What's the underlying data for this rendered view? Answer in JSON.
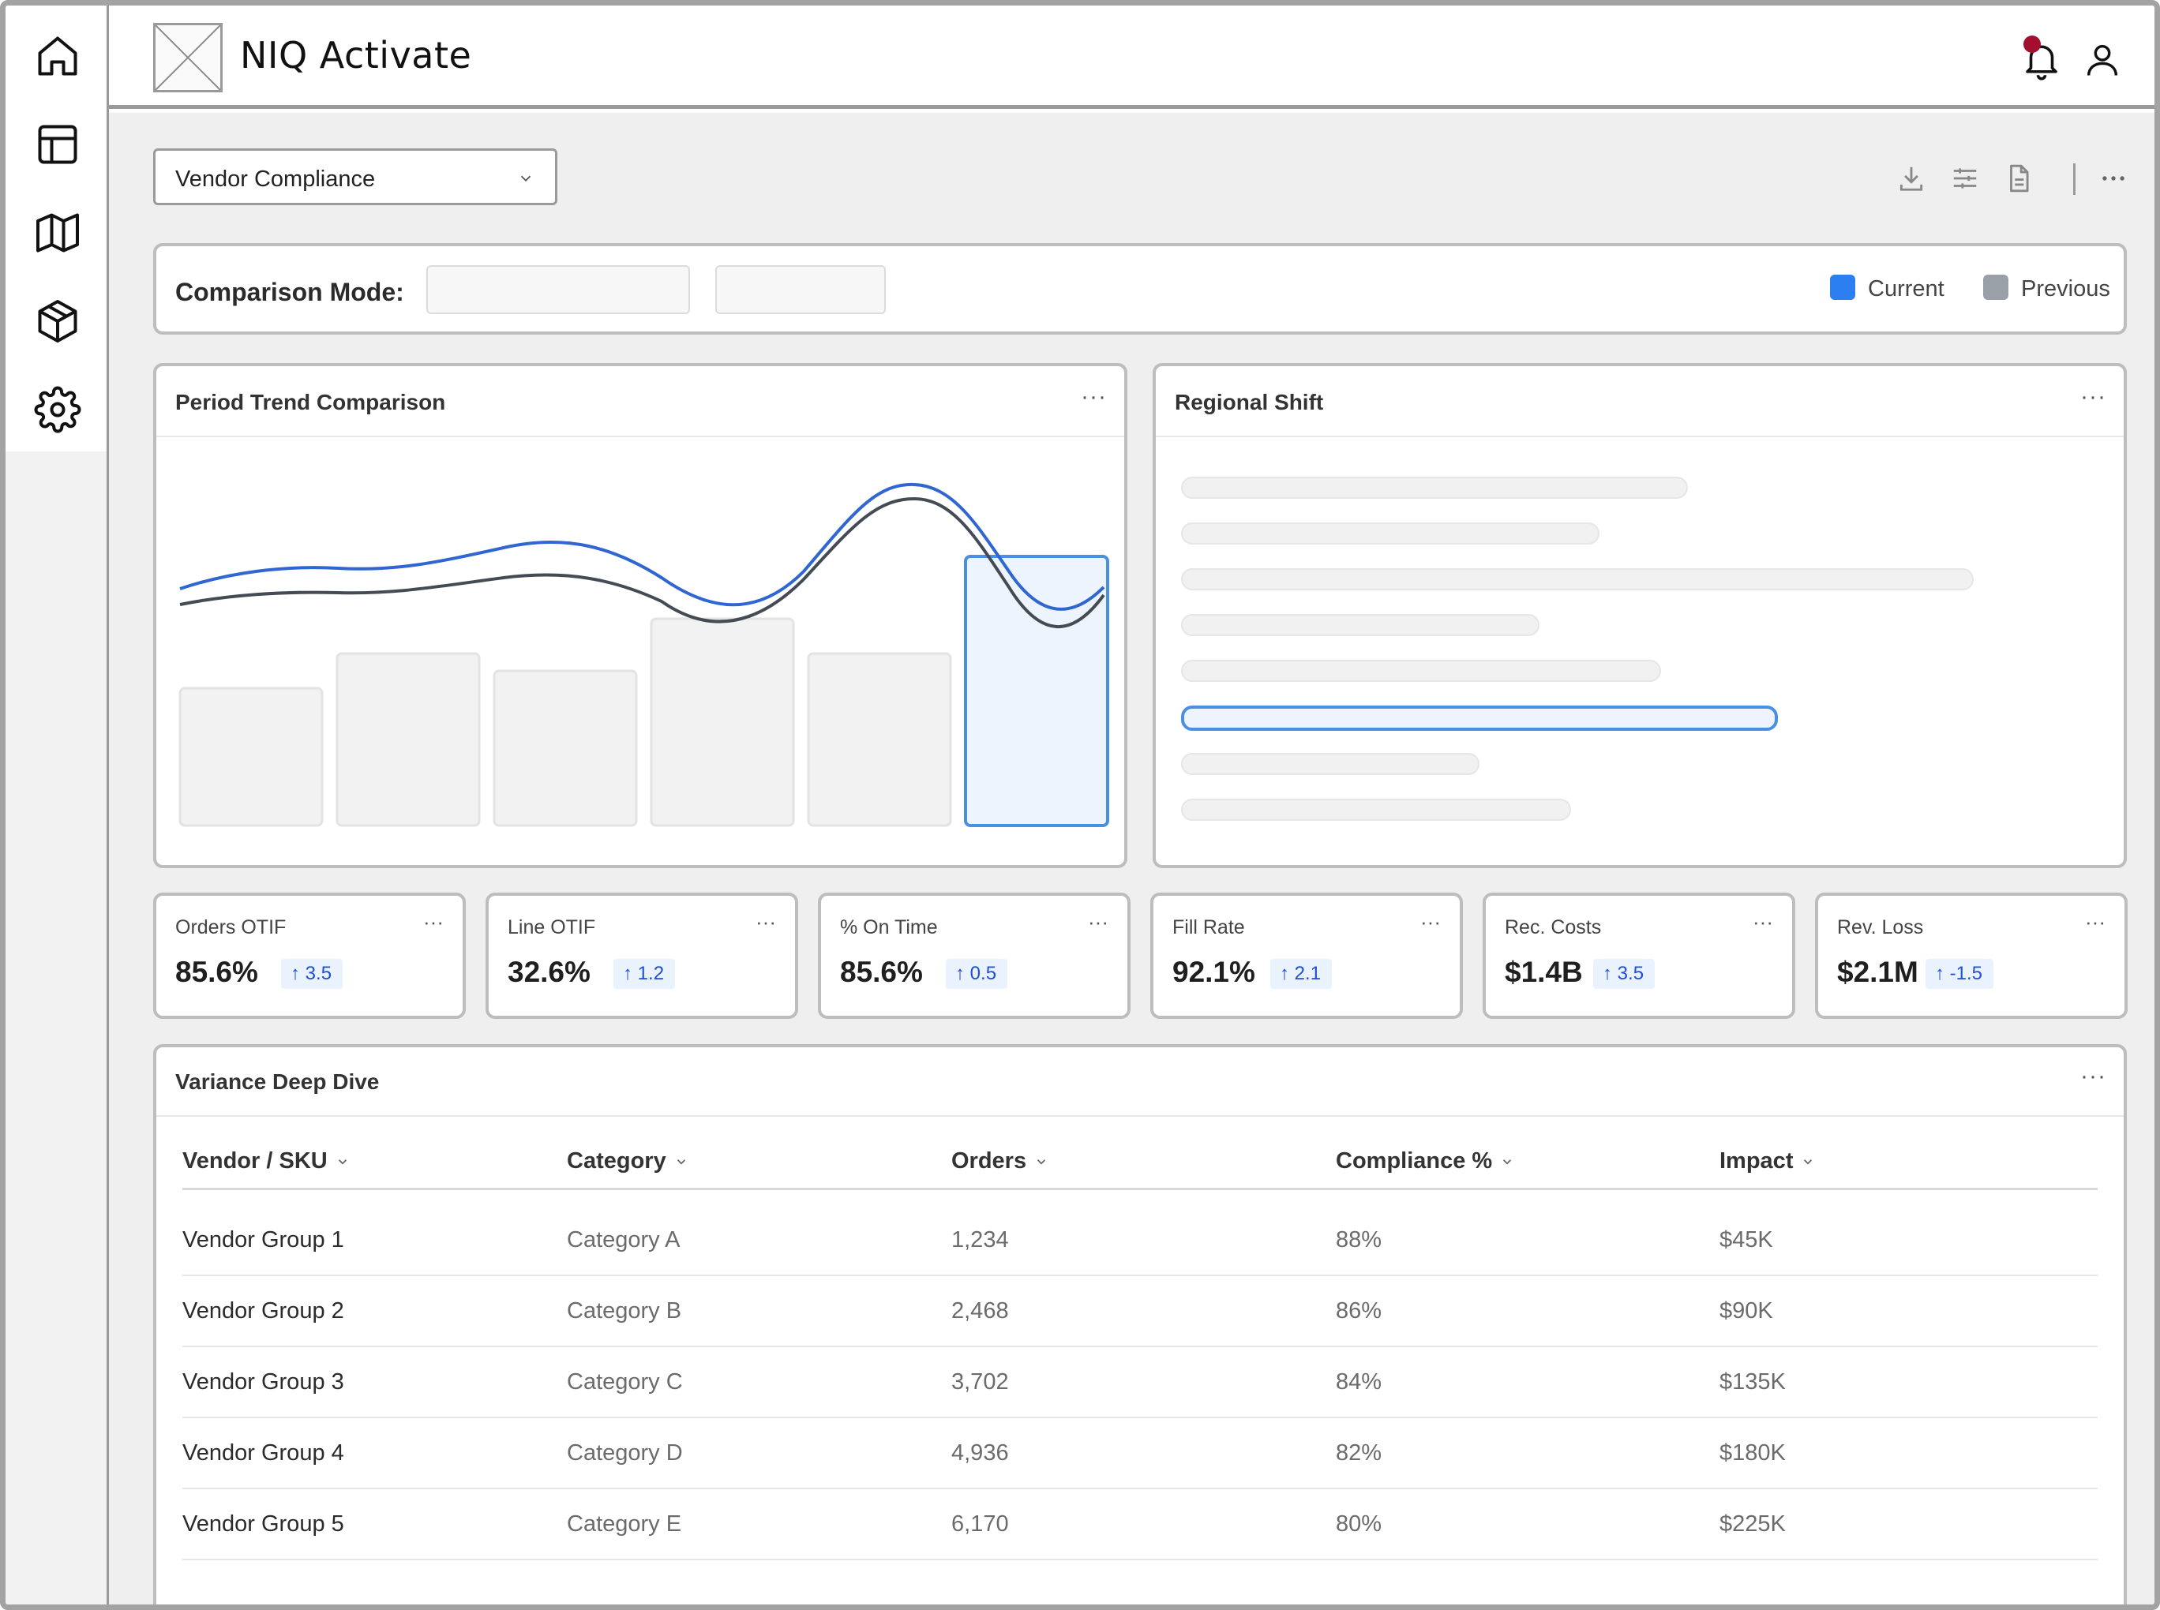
{
  "app": {
    "title": "NIQ Activate"
  },
  "nav": {
    "items": [
      {
        "icon": "home-icon",
        "label": "Home"
      },
      {
        "icon": "layout-icon",
        "label": "Dashboard"
      },
      {
        "icon": "map-icon",
        "label": "Map"
      },
      {
        "icon": "package-icon",
        "label": "Products"
      },
      {
        "icon": "gear-icon",
        "label": "Settings"
      }
    ]
  },
  "header": {
    "notification_count_visible": true
  },
  "report_select": {
    "value": "Vendor Compliance"
  },
  "toolbar": {
    "icons": [
      "download-icon",
      "sliders-icon",
      "document-icon",
      "more-icon"
    ]
  },
  "comparison": {
    "title": "Comparison Mode:",
    "legend": [
      {
        "label": "Current",
        "color": "#2b7ff0"
      },
      {
        "label": "Previous",
        "color": "#9aa0a8"
      }
    ]
  },
  "trend_card": {
    "title": "Period Trend Comparison",
    "more": "···"
  },
  "regional_card": {
    "title": "Regional Shift",
    "more": "···"
  },
  "kpis": [
    {
      "label": "Orders OTIF",
      "value": "85.6%",
      "delta": "3.5"
    },
    {
      "label": "Line OTIF",
      "value": "32.6%",
      "delta": "1.2"
    },
    {
      "label": "% On Time",
      "value": "85.6%",
      "delta": "0.5"
    },
    {
      "label": "Fill Rate",
      "value": "92.1%",
      "delta": "2.1"
    },
    {
      "label": "Rec. Costs",
      "value": "$1.4B",
      "delta": "3.5"
    },
    {
      "label": "Rev. Loss",
      "value": "$2.1M",
      "delta": "-1.5"
    }
  ],
  "variance": {
    "title": "Variance Deep Dive",
    "more": "···",
    "columns": [
      "Vendor / SKU",
      "Category",
      "Orders",
      "Compliance %",
      "Impact"
    ],
    "rows": [
      [
        "Vendor Group 1",
        "Category A",
        "1,234",
        "88%",
        "$45K"
      ],
      [
        "Vendor Group 2",
        "Category B",
        "2,468",
        "86%",
        "$90K"
      ],
      [
        "Vendor Group 3",
        "Category C",
        "3,702",
        "84%",
        "$135K"
      ],
      [
        "Vendor Group 4",
        "Category D",
        "4,936",
        "82%",
        "$180K"
      ],
      [
        "Vendor Group 5",
        "Category E",
        "6,170",
        "80%",
        "$225K"
      ]
    ]
  },
  "colors": {
    "accent": "#2b7ff0",
    "highlight_border": "#4a90e2",
    "badge_bg": "#eaf2fe",
    "badge_text": "#1d4ed8",
    "alert_dot": "#a3102f"
  }
}
